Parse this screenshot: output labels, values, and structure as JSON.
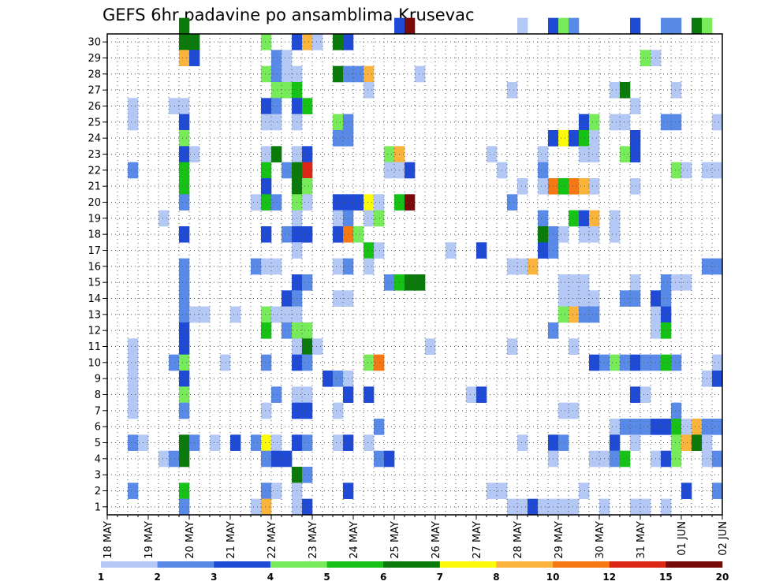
{
  "chart_data": {
    "type": "heatmap",
    "title": "GEFS 6hr padavine po ansamblima Krusevac",
    "xlabel": "",
    "ylabel": "",
    "x_tick_labels": [
      "18 MAY",
      "19 MAY",
      "20 MAY",
      "21 MAY",
      "22 MAY",
      "23 MAY",
      "24 MAY",
      "25 MAY",
      "26 MAY",
      "27 MAY",
      "28 MAY",
      "29 MAY",
      "30 MAY",
      "31 MAY",
      "01 JUN",
      "02 JUN"
    ],
    "y_tick_labels": [
      "1",
      "2",
      "3",
      "4",
      "5",
      "6",
      "7",
      "8",
      "9",
      "10",
      "11",
      "12",
      "13",
      "14",
      "15",
      "16",
      "17",
      "18",
      "19",
      "20",
      "21",
      "22",
      "23",
      "24",
      "25",
      "26",
      "27",
      "28",
      "29",
      "30"
    ],
    "x_steps_per_day": 4,
    "n_steps": 60,
    "n_members": 30,
    "grid": true,
    "colorbar": {
      "position": "bottom",
      "tick_labels": [
        "1",
        "2",
        "3",
        "4",
        "5",
        "6",
        "7",
        "8",
        "10",
        "12",
        "15",
        "20"
      ],
      "colors": [
        "#b4c8f5",
        "#5a8ae8",
        "#1f4ad6",
        "#78eb5a",
        "#17c217",
        "#0a7a0a",
        "#fafa0a",
        "#fab43c",
        "#f57814",
        "#dc2814",
        "#780a0a"
      ]
    },
    "cell_format": "[member, time_step, color_class]",
    "cells": [
      [
        30,
        7,
        5
      ],
      [
        30,
        28,
        2
      ],
      [
        30,
        29,
        10
      ],
      [
        30,
        40,
        0
      ],
      [
        30,
        43,
        2
      ],
      [
        30,
        44,
        3
      ],
      [
        30,
        45,
        1
      ],
      [
        30,
        51,
        2
      ],
      [
        30,
        54,
        1
      ],
      [
        30,
        55,
        1
      ],
      [
        30,
        57,
        5
      ],
      [
        30,
        58,
        3
      ],
      [
        29,
        7,
        5
      ],
      [
        29,
        8,
        5
      ],
      [
        29,
        15,
        3
      ],
      [
        29,
        18,
        2
      ],
      [
        29,
        19,
        7
      ],
      [
        29,
        20,
        0
      ],
      [
        29,
        22,
        5
      ],
      [
        29,
        23,
        2
      ],
      [
        28,
        7,
        7
      ],
      [
        28,
        8,
        2
      ],
      [
        28,
        16,
        1
      ],
      [
        28,
        17,
        0
      ],
      [
        28,
        52,
        3
      ],
      [
        28,
        53,
        0
      ],
      [
        27,
        15,
        3
      ],
      [
        27,
        16,
        1
      ],
      [
        27,
        17,
        0
      ],
      [
        27,
        18,
        0
      ],
      [
        27,
        22,
        5
      ],
      [
        27,
        23,
        1
      ],
      [
        27,
        24,
        1
      ],
      [
        27,
        25,
        7
      ],
      [
        27,
        30,
        0
      ],
      [
        26,
        16,
        3
      ],
      [
        26,
        17,
        3
      ],
      [
        26,
        18,
        4
      ],
      [
        26,
        25,
        0
      ],
      [
        26,
        39,
        0
      ],
      [
        26,
        49,
        0
      ],
      [
        26,
        50,
        5
      ],
      [
        26,
        55,
        0
      ],
      [
        25,
        2,
        0
      ],
      [
        25,
        6,
        0
      ],
      [
        25,
        7,
        0
      ],
      [
        25,
        15,
        2
      ],
      [
        25,
        16,
        1
      ],
      [
        25,
        18,
        2
      ],
      [
        25,
        19,
        4
      ],
      [
        25,
        51,
        0
      ],
      [
        24,
        2,
        0
      ],
      [
        24,
        7,
        2
      ],
      [
        24,
        15,
        0
      ],
      [
        24,
        16,
        0
      ],
      [
        24,
        18,
        0
      ],
      [
        24,
        22,
        3
      ],
      [
        24,
        23,
        1
      ],
      [
        24,
        46,
        2
      ],
      [
        24,
        47,
        3
      ],
      [
        24,
        49,
        0
      ],
      [
        24,
        50,
        0
      ],
      [
        24,
        54,
        1
      ],
      [
        24,
        55,
        1
      ],
      [
        24,
        59,
        0
      ],
      [
        23,
        7,
        3
      ],
      [
        23,
        22,
        1
      ],
      [
        23,
        23,
        1
      ],
      [
        23,
        43,
        2
      ],
      [
        23,
        44,
        6
      ],
      [
        23,
        45,
        2
      ],
      [
        23,
        46,
        4
      ],
      [
        23,
        47,
        0
      ],
      [
        23,
        51,
        2
      ],
      [
        22,
        7,
        2
      ],
      [
        22,
        8,
        0
      ],
      [
        22,
        15,
        0
      ],
      [
        22,
        16,
        5
      ],
      [
        22,
        18,
        0
      ],
      [
        22,
        19,
        2
      ],
      [
        22,
        27,
        3
      ],
      [
        22,
        28,
        7
      ],
      [
        22,
        37,
        0
      ],
      [
        22,
        42,
        0
      ],
      [
        22,
        46,
        0
      ],
      [
        22,
        47,
        0
      ],
      [
        22,
        50,
        3
      ],
      [
        22,
        51,
        2
      ],
      [
        21,
        2,
        1
      ],
      [
        21,
        7,
        4
      ],
      [
        21,
        15,
        4
      ],
      [
        21,
        17,
        1
      ],
      [
        21,
        18,
        5
      ],
      [
        21,
        19,
        9
      ],
      [
        21,
        27,
        0
      ],
      [
        21,
        28,
        0
      ],
      [
        21,
        29,
        2
      ],
      [
        21,
        38,
        0
      ],
      [
        21,
        42,
        1
      ],
      [
        21,
        55,
        3
      ],
      [
        21,
        56,
        0
      ],
      [
        21,
        58,
        0
      ],
      [
        21,
        59,
        0
      ],
      [
        20,
        7,
        4
      ],
      [
        20,
        15,
        2
      ],
      [
        20,
        18,
        5
      ],
      [
        20,
        19,
        3
      ],
      [
        20,
        40,
        0
      ],
      [
        20,
        42,
        0
      ],
      [
        20,
        43,
        8
      ],
      [
        20,
        44,
        4
      ],
      [
        20,
        45,
        8
      ],
      [
        20,
        46,
        7
      ],
      [
        20,
        47,
        0
      ],
      [
        20,
        51,
        0
      ],
      [
        19,
        7,
        1
      ],
      [
        19,
        14,
        0
      ],
      [
        19,
        15,
        4
      ],
      [
        19,
        16,
        1
      ],
      [
        19,
        18,
        3
      ],
      [
        19,
        19,
        0
      ],
      [
        19,
        22,
        2
      ],
      [
        19,
        23,
        2
      ],
      [
        19,
        24,
        2
      ],
      [
        19,
        25,
        6
      ],
      [
        19,
        26,
        0
      ],
      [
        19,
        28,
        4
      ],
      [
        19,
        29,
        10
      ],
      [
        19,
        39,
        1
      ],
      [
        18,
        5,
        0
      ],
      [
        18,
        18,
        0
      ],
      [
        18,
        22,
        0
      ],
      [
        18,
        23,
        1
      ],
      [
        18,
        25,
        0
      ],
      [
        18,
        26,
        3
      ],
      [
        18,
        42,
        1
      ],
      [
        18,
        45,
        4
      ],
      [
        18,
        46,
        2
      ],
      [
        18,
        47,
        7
      ],
      [
        18,
        49,
        0
      ],
      [
        17,
        7,
        2
      ],
      [
        17,
        15,
        2
      ],
      [
        17,
        17,
        1
      ],
      [
        17,
        18,
        2
      ],
      [
        17,
        19,
        2
      ],
      [
        17,
        22,
        2
      ],
      [
        17,
        23,
        8
      ],
      [
        17,
        24,
        3
      ],
      [
        17,
        42,
        5
      ],
      [
        17,
        43,
        1
      ],
      [
        17,
        44,
        0
      ],
      [
        17,
        46,
        0
      ],
      [
        17,
        47,
        0
      ],
      [
        17,
        49,
        0
      ],
      [
        16,
        18,
        0
      ],
      [
        16,
        25,
        4
      ],
      [
        16,
        26,
        0
      ],
      [
        16,
        33,
        0
      ],
      [
        16,
        36,
        2
      ],
      [
        16,
        42,
        2
      ],
      [
        16,
        43,
        1
      ],
      [
        15,
        7,
        1
      ],
      [
        15,
        14,
        1
      ],
      [
        15,
        15,
        0
      ],
      [
        15,
        16,
        0
      ],
      [
        15,
        22,
        0
      ],
      [
        15,
        23,
        1
      ],
      [
        15,
        25,
        0
      ],
      [
        15,
        39,
        0
      ],
      [
        15,
        39,
        0
      ],
      [
        15,
        40,
        0
      ],
      [
        15,
        41,
        7
      ],
      [
        15,
        58,
        1
      ],
      [
        15,
        59,
        1
      ],
      [
        14,
        7,
        1
      ],
      [
        14,
        18,
        2
      ],
      [
        14,
        19,
        1
      ],
      [
        14,
        27,
        1
      ],
      [
        14,
        28,
        4
      ],
      [
        14,
        29,
        5
      ],
      [
        14,
        30,
        5
      ],
      [
        14,
        44,
        0
      ],
      [
        14,
        45,
        0
      ],
      [
        14,
        46,
        0
      ],
      [
        14,
        51,
        0
      ],
      [
        14,
        54,
        1
      ],
      [
        14,
        55,
        0
      ],
      [
        14,
        56,
        0
      ],
      [
        13,
        7,
        1
      ],
      [
        13,
        17,
        2
      ],
      [
        13,
        18,
        1
      ],
      [
        13,
        22,
        0
      ],
      [
        13,
        23,
        0
      ],
      [
        13,
        44,
        0
      ],
      [
        13,
        45,
        0
      ],
      [
        13,
        46,
        0
      ],
      [
        13,
        47,
        0
      ],
      [
        13,
        50,
        1
      ],
      [
        13,
        51,
        1
      ],
      [
        13,
        53,
        2
      ],
      [
        13,
        54,
        1
      ],
      [
        12,
        7,
        1
      ],
      [
        12,
        8,
        0
      ],
      [
        12,
        9,
        0
      ],
      [
        12,
        12,
        0
      ],
      [
        12,
        15,
        3
      ],
      [
        12,
        16,
        0
      ],
      [
        12,
        17,
        0
      ],
      [
        12,
        18,
        0
      ],
      [
        12,
        44,
        3
      ],
      [
        12,
        45,
        7
      ],
      [
        12,
        46,
        1
      ],
      [
        12,
        47,
        1
      ],
      [
        12,
        53,
        0
      ],
      [
        12,
        54,
        2
      ],
      [
        11,
        7,
        2
      ],
      [
        11,
        15,
        4
      ],
      [
        11,
        17,
        1
      ],
      [
        11,
        18,
        3
      ],
      [
        11,
        19,
        3
      ],
      [
        11,
        43,
        1
      ],
      [
        11,
        53,
        0
      ],
      [
        11,
        54,
        4
      ],
      [
        10,
        2,
        0
      ],
      [
        10,
        7,
        2
      ],
      [
        10,
        18,
        0
      ],
      [
        10,
        19,
        5
      ],
      [
        10,
        20,
        0
      ],
      [
        10,
        31,
        0
      ],
      [
        10,
        39,
        0
      ],
      [
        10,
        45,
        0
      ],
      [
        9,
        2,
        0
      ],
      [
        9,
        6,
        1
      ],
      [
        9,
        7,
        3
      ],
      [
        9,
        11,
        0
      ],
      [
        9,
        15,
        1
      ],
      [
        9,
        18,
        2
      ],
      [
        9,
        19,
        1
      ],
      [
        9,
        25,
        3
      ],
      [
        9,
        26,
        8
      ],
      [
        9,
        47,
        2
      ],
      [
        9,
        48,
        1
      ],
      [
        9,
        49,
        3
      ],
      [
        9,
        50,
        1
      ],
      [
        9,
        51,
        2
      ],
      [
        9,
        52,
        1
      ],
      [
        9,
        53,
        1
      ],
      [
        9,
        54,
        4
      ],
      [
        9,
        55,
        1
      ],
      [
        9,
        59,
        0
      ],
      [
        8,
        2,
        0
      ],
      [
        8,
        7,
        2
      ],
      [
        8,
        21,
        2
      ],
      [
        8,
        22,
        1
      ],
      [
        8,
        23,
        0
      ],
      [
        8,
        58,
        0
      ],
      [
        8,
        59,
        2
      ],
      [
        7,
        2,
        0
      ],
      [
        7,
        7,
        3
      ],
      [
        7,
        16,
        1
      ],
      [
        7,
        18,
        0
      ],
      [
        7,
        19,
        0
      ],
      [
        7,
        23,
        2
      ],
      [
        7,
        25,
        2
      ],
      [
        7,
        35,
        0
      ],
      [
        7,
        36,
        2
      ],
      [
        7,
        51,
        2
      ],
      [
        7,
        52,
        0
      ],
      [
        6,
        2,
        0
      ],
      [
        6,
        7,
        1
      ],
      [
        6,
        15,
        0
      ],
      [
        6,
        18,
        2
      ],
      [
        6,
        19,
        2
      ],
      [
        6,
        22,
        0
      ],
      [
        6,
        44,
        0
      ],
      [
        6,
        45,
        0
      ],
      [
        6,
        55,
        1
      ],
      [
        5,
        26,
        1
      ],
      [
        5,
        49,
        0
      ],
      [
        5,
        50,
        1
      ],
      [
        5,
        51,
        1
      ],
      [
        5,
        52,
        1
      ],
      [
        5,
        53,
        2
      ],
      [
        5,
        54,
        2
      ],
      [
        5,
        55,
        4
      ],
      [
        5,
        56,
        0
      ],
      [
        5,
        57,
        7
      ],
      [
        5,
        58,
        1
      ],
      [
        5,
        59,
        1
      ],
      [
        4,
        2,
        1
      ],
      [
        4,
        3,
        0
      ],
      [
        4,
        7,
        5
      ],
      [
        4,
        8,
        1
      ],
      [
        4,
        10,
        0
      ],
      [
        4,
        12,
        2
      ],
      [
        4,
        14,
        1
      ],
      [
        4,
        15,
        6
      ],
      [
        4,
        16,
        0
      ],
      [
        4,
        18,
        2
      ],
      [
        4,
        19,
        1
      ],
      [
        4,
        22,
        0
      ],
      [
        4,
        23,
        2
      ],
      [
        4,
        25,
        0
      ],
      [
        4,
        40,
        0
      ],
      [
        4,
        43,
        2
      ],
      [
        4,
        44,
        1
      ],
      [
        4,
        49,
        2
      ],
      [
        4,
        51,
        0
      ],
      [
        4,
        55,
        3
      ],
      [
        4,
        56,
        7
      ],
      [
        4,
        57,
        5
      ],
      [
        4,
        58,
        0
      ],
      [
        3,
        5,
        0
      ],
      [
        3,
        6,
        1
      ],
      [
        3,
        7,
        5
      ],
      [
        3,
        15,
        1
      ],
      [
        3,
        16,
        2
      ],
      [
        3,
        17,
        2
      ],
      [
        3,
        26,
        1
      ],
      [
        3,
        27,
        2
      ],
      [
        3,
        43,
        0
      ],
      [
        3,
        47,
        0
      ],
      [
        3,
        48,
        0
      ],
      [
        3,
        49,
        1
      ],
      [
        3,
        50,
        4
      ],
      [
        3,
        53,
        0
      ],
      [
        3,
        54,
        2
      ],
      [
        3,
        55,
        3
      ],
      [
        3,
        58,
        0
      ],
      [
        3,
        59,
        1
      ],
      [
        2,
        18,
        5
      ],
      [
        2,
        19,
        1
      ],
      [
        1,
        2,
        1
      ],
      [
        1,
        7,
        4
      ],
      [
        1,
        15,
        1
      ],
      [
        1,
        16,
        0
      ],
      [
        1,
        18,
        0
      ],
      [
        1,
        23,
        2
      ],
      [
        1,
        37,
        0
      ],
      [
        1,
        38,
        0
      ],
      [
        1,
        46,
        0
      ],
      [
        1,
        56,
        2
      ],
      [
        1,
        59,
        1
      ],
      [
        0,
        7,
        1
      ],
      [
        0,
        14,
        0
      ],
      [
        0,
        15,
        7
      ],
      [
        0,
        18,
        0
      ],
      [
        0,
        19,
        2
      ],
      [
        0,
        39,
        0
      ],
      [
        0,
        40,
        0
      ],
      [
        0,
        41,
        2
      ],
      [
        0,
        42,
        0
      ],
      [
        0,
        43,
        0
      ],
      [
        0,
        44,
        0
      ],
      [
        0,
        45,
        0
      ],
      [
        0,
        48,
        0
      ],
      [
        0,
        51,
        0
      ],
      [
        0,
        52,
        0
      ],
      [
        0,
        54,
        0
      ]
    ]
  }
}
